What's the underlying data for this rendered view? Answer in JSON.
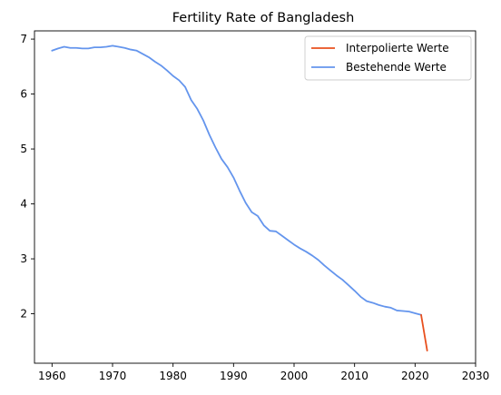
{
  "chart_data": {
    "type": "line",
    "title": "Fertility Rate of Bangladesh",
    "xlabel": "",
    "ylabel": "",
    "xlim": [
      1957.1,
      2030
    ],
    "ylim": [
      1.1,
      7.15
    ],
    "xticks": [
      1960,
      1970,
      1980,
      1990,
      2000,
      2010,
      2020,
      2030
    ],
    "yticks": [
      2,
      3,
      4,
      5,
      6,
      7
    ],
    "grid": false,
    "legend_position": "top-right",
    "series": [
      {
        "name": "Interpolierte Werte",
        "color": "#E8501E",
        "x": [
          2021,
          2022
        ],
        "y": [
          1.98,
          1.33
        ]
      },
      {
        "name": "Bestehende Werte",
        "color": "#6495ED",
        "x": [
          1960,
          1961,
          1962,
          1963,
          1964,
          1965,
          1966,
          1967,
          1968,
          1969,
          1970,
          1971,
          1972,
          1973,
          1974,
          1975,
          1976,
          1977,
          1978,
          1979,
          1980,
          1981,
          1982,
          1983,
          1984,
          1985,
          1986,
          1987,
          1988,
          1989,
          1990,
          1991,
          1992,
          1993,
          1994,
          1995,
          1996,
          1997,
          1998,
          1999,
          2000,
          2001,
          2002,
          2003,
          2004,
          2005,
          2006,
          2007,
          2008,
          2009,
          2010,
          2011,
          2012,
          2013,
          2014,
          2015,
          2016,
          2017,
          2018,
          2019,
          2020,
          2021
        ],
        "y": [
          6.79,
          6.83,
          6.86,
          6.84,
          6.84,
          6.83,
          6.83,
          6.85,
          6.85,
          6.86,
          6.88,
          6.86,
          6.84,
          6.81,
          6.79,
          6.73,
          6.67,
          6.59,
          6.52,
          6.43,
          6.33,
          6.25,
          6.13,
          5.89,
          5.73,
          5.52,
          5.26,
          5.03,
          4.82,
          4.67,
          4.48,
          4.24,
          4.02,
          3.85,
          3.78,
          3.61,
          3.51,
          3.5,
          3.42,
          3.34,
          3.26,
          3.19,
          3.13,
          3.06,
          2.98,
          2.88,
          2.79,
          2.7,
          2.62,
          2.52,
          2.42,
          2.31,
          2.23,
          2.2,
          2.16,
          2.13,
          2.11,
          2.06,
          2.05,
          2.04,
          2.01,
          1.98
        ]
      }
    ]
  }
}
